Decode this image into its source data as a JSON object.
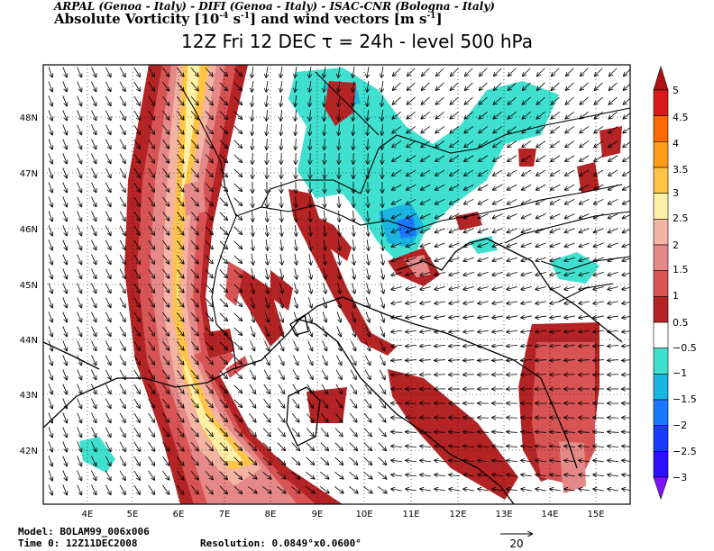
{
  "header": {
    "institutions": "ARPAL (Genoa - Italy)  -  DIFI (Genoa - Italy)  -  ISAC-CNR (Bologna - Italy)",
    "field_main": "Absolute Vorticity [10",
    "field_exp1": "-4",
    "field_mid": " s",
    "field_exp2": "-1",
    "field_end": "] and wind vectors [m s",
    "field_exp3": "-1",
    "field_close": "]",
    "forecast": "12Z Fri 12 DEC  τ = 24h  -  level 500 hPa"
  },
  "map": {
    "lon_labels": [
      "4E",
      "5E",
      "6E",
      "7E",
      "8E",
      "9E",
      "10E",
      "11E",
      "12E",
      "13E",
      "14E",
      "15E"
    ],
    "lat_labels": [
      "42N",
      "43N",
      "44N",
      "45N",
      "46N",
      "47N",
      "48N"
    ]
  },
  "colorbar": {
    "labels": [
      "5",
      "4.5",
      "4",
      "3.5",
      "3",
      "2.5",
      "2",
      "1.5",
      "1",
      "0.5",
      "−0.5",
      "−1",
      "−1.5",
      "−2",
      "−2.5",
      "−3"
    ],
    "colors": [
      "#b01010",
      "#d81a1a",
      "#ff6a00",
      "#ff9d1a",
      "#ffc445",
      "#fff0a8",
      "#f4b4a4",
      "#e48888",
      "#d85454",
      "#b52424",
      "#ffffff",
      "#40e0d0",
      "#1ab4e0",
      "#1a78ff",
      "#1a3aff",
      "#2a10ff",
      "#8010ff"
    ]
  },
  "footer": {
    "model": "Model: BOLAM99_006x006",
    "time": "Time 0: 12Z11DEC2008",
    "resolution": "Resolution: 0.0849°x0.0600°",
    "ref_vector": "20"
  }
}
